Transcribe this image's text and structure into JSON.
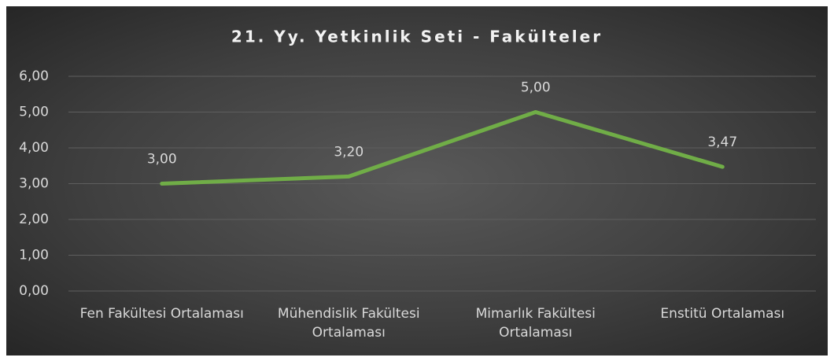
{
  "chart_data": {
    "type": "line",
    "title": "21. Yy. Yetkinlik Seti - Fakülteler",
    "categories": [
      "Fen Fakültesi Ortalaması",
      "Mühendislik Fakültesi Ortalaması",
      "Mimarlık Fakültesi Ortalaması",
      "Enstitü Ortalaması"
    ],
    "values": [
      3.0,
      3.2,
      5.0,
      3.47
    ],
    "value_labels": [
      "3,00",
      "3,20",
      "5,00",
      "3,47"
    ],
    "color": "#70ad47",
    "ylim": [
      0,
      6
    ],
    "yticks": [
      {
        "value": 0,
        "label": "0,00"
      },
      {
        "value": 1,
        "label": "1,00"
      },
      {
        "value": 2,
        "label": "2,00"
      },
      {
        "value": 3,
        "label": "3,00"
      },
      {
        "value": 4,
        "label": "4,00"
      },
      {
        "value": 5,
        "label": "5,00"
      },
      {
        "value": 6,
        "label": "6,00"
      }
    ],
    "grid": true
  }
}
